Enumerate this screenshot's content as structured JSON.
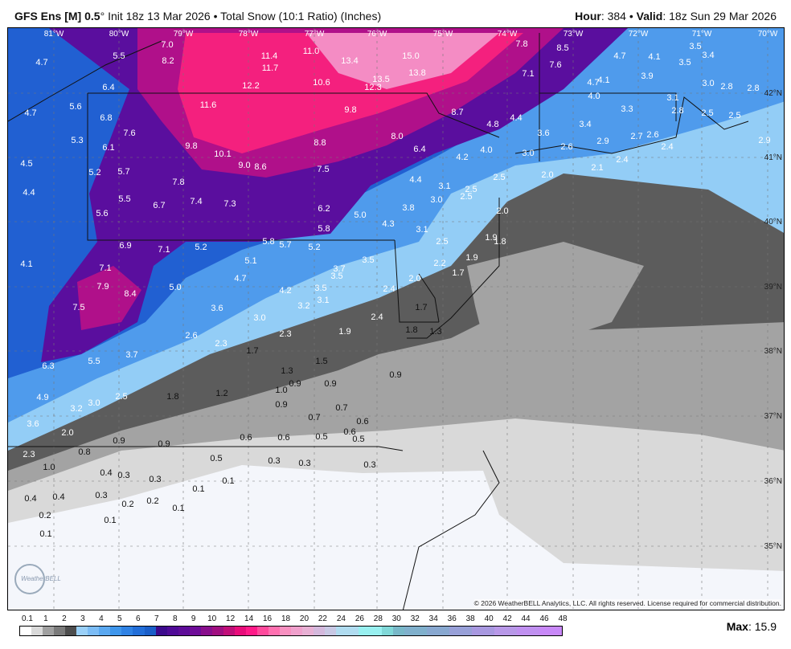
{
  "header": {
    "model": "GFS Ens [M] 0.5",
    "degree": "°",
    "init": "Init 18z 13 Mar 2026",
    "sep": "•",
    "product": "Total Snow (10:1 Ratio) (Inches)",
    "hour_label": "Hour",
    "hour": "384",
    "valid_label": "Valid",
    "valid": "18z Sun 29 Mar 2026"
  },
  "map": {
    "longitudes": [
      "81°W",
      "80°W",
      "79°W",
      "78°W",
      "77°W",
      "76°W",
      "75°W",
      "74°W",
      "73°W",
      "72°W",
      "71°W",
      "70°W"
    ],
    "latitudes": [
      "42°N",
      "41°N",
      "40°N",
      "39°N",
      "38°N",
      "37°N",
      "36°N",
      "35°N"
    ],
    "values": [
      "7.0",
      "5.5",
      "8.2",
      "4.7",
      "11.4",
      "11.0",
      "13.4",
      "15.0",
      "7.8",
      "8.5",
      "4.7",
      "4.1",
      "3.5",
      "3.4",
      "3.5",
      "11.7",
      "13.8",
      "7.6",
      "7.1",
      "3.9",
      "4.7",
      "4.1",
      "12.2",
      "10.6",
      "13.5",
      "12.3",
      "3.0",
      "2.8",
      "2.8",
      "6.4",
      "4.0",
      "3.1",
      "5.6",
      "11.6",
      "9.8",
      "8.7",
      "3.3",
      "2.5",
      "2.8",
      "2.5",
      "4.7",
      "6.8",
      "4.8",
      "4.4",
      "3.4",
      "5.3",
      "7.6",
      "8.0",
      "3.6",
      "2.7",
      "2.6",
      "2.9",
      "2.6",
      "2.4",
      "2.9",
      "6.1",
      "9.8",
      "10.1",
      "8.8",
      "6.4",
      "4.0",
      "3.0",
      "4.2",
      "2.4",
      "4.5",
      "9.0",
      "8.6",
      "7.5",
      "2.0",
      "2.1",
      "5.2",
      "5.7",
      "7.8",
      "2.5",
      "4.4",
      "4.4",
      "5.5",
      "6.7",
      "7.4",
      "7.3",
      "3.0",
      "2.5",
      "2.5",
      "3.1",
      "6.2",
      "3.8",
      "2.0",
      "5.6",
      "5.0",
      "4.3",
      "5.8",
      "3.1",
      "1.9",
      "1.8",
      "5.8",
      "5.7",
      "5.2",
      "6.9",
      "7.1",
      "5.2",
      "2.5",
      "3.5",
      "5.1",
      "1.9",
      "4.1",
      "7.1",
      "3.7",
      "2.2",
      "3.5",
      "1.7",
      "4.7",
      "2.0",
      "7.9",
      "8.4",
      "5.0",
      "4.2",
      "3.5",
      "2.4",
      "3.1",
      "3.2",
      "7.5",
      "3.6",
      "3.0",
      "1.7",
      "2.4",
      "1.9",
      "1.8",
      "1.3",
      "2.6",
      "2.3",
      "2.3",
      "1.7",
      "3.7",
      "5.5",
      "6.3",
      "1.5",
      "1.3",
      "0.9",
      "0.9",
      "0.9",
      "1.0",
      "1.8",
      "1.2",
      "2.5",
      "4.9",
      "3.0",
      "3.2",
      "0.9",
      "0.7",
      "0.7",
      "3.6",
      "0.6",
      "2.0",
      "0.6",
      "0.6",
      "0.6",
      "0.5",
      "0.5",
      "0.9",
      "0.9",
      "0.8",
      "2.3",
      "0.5",
      "0.3",
      "0.3",
      "0.3",
      "1.0",
      "0.4",
      "0.3",
      "0.3",
      "0.1",
      "0.1",
      "0.4",
      "0.4",
      "0.3",
      "0.2",
      "0.2",
      "0.1",
      "0.2",
      "0.1",
      "0.1"
    ],
    "fill_colors": {
      "none": "#f4f6fb",
      "0.1-1": "#d9d9d9",
      "1": "#a3a3a3",
      "dark": "#5c5c5c",
      "1-2": "#93cdf6",
      "2-4": "#4f9bec",
      "4-6": "#2160d2",
      "6-8": "#5a0e9e",
      "8-10": "#b0108a",
      "10-12": "#f4207e",
      "12-16": "#f48cc4"
    },
    "logo": "WeatherBELL"
  },
  "copyright": "© 2026 WeatherBELL Analytics, LLC. All rights reserved. License required for commercial distribution.",
  "colorbar": {
    "ticks": [
      "0.1",
      "1",
      "2",
      "3",
      "4",
      "5",
      "6",
      "7",
      "8",
      "9",
      "10",
      "12",
      "14",
      "16",
      "18",
      "20",
      "22",
      "24",
      "26",
      "28",
      "30",
      "32",
      "34",
      "36",
      "38",
      "40",
      "42",
      "44",
      "46",
      "48"
    ],
    "colors": [
      "#ffffff",
      "#d9d9d9",
      "#a0a0a0",
      "#7a7a7a",
      "#4d4d4d",
      "#9ad0f8",
      "#7bbcf5",
      "#5aa8f0",
      "#3e96ec",
      "#2f82e4",
      "#226ed8",
      "#1a5ec8",
      "#3c0a8c",
      "#4f0a96",
      "#5e0c98",
      "#6e0c98",
      "#880e8c",
      "#a00e80",
      "#c00e78",
      "#e80c7a",
      "#ff1a88",
      "#ff4a9c",
      "#ff70b0",
      "#f890c0",
      "#f0a0cc",
      "#e8b0d4",
      "#d4b8dc",
      "#c8c8e4",
      "#b0dcf0",
      "#b0dcf0",
      "#98f0f0",
      "#98f0f0",
      "#80d8d8",
      "#78b8c8",
      "#80b0cc",
      "#80b0cc",
      "#88a8d0",
      "#88a8d0",
      "#98a0d8",
      "#98a0d8",
      "#a898e0",
      "#a898e0",
      "#b898e8",
      "#b898e8",
      "#c090f0",
      "#c090f0",
      "#c888f8",
      "#c888f8"
    ]
  },
  "max": {
    "label": "Max",
    "value": "15.9"
  }
}
